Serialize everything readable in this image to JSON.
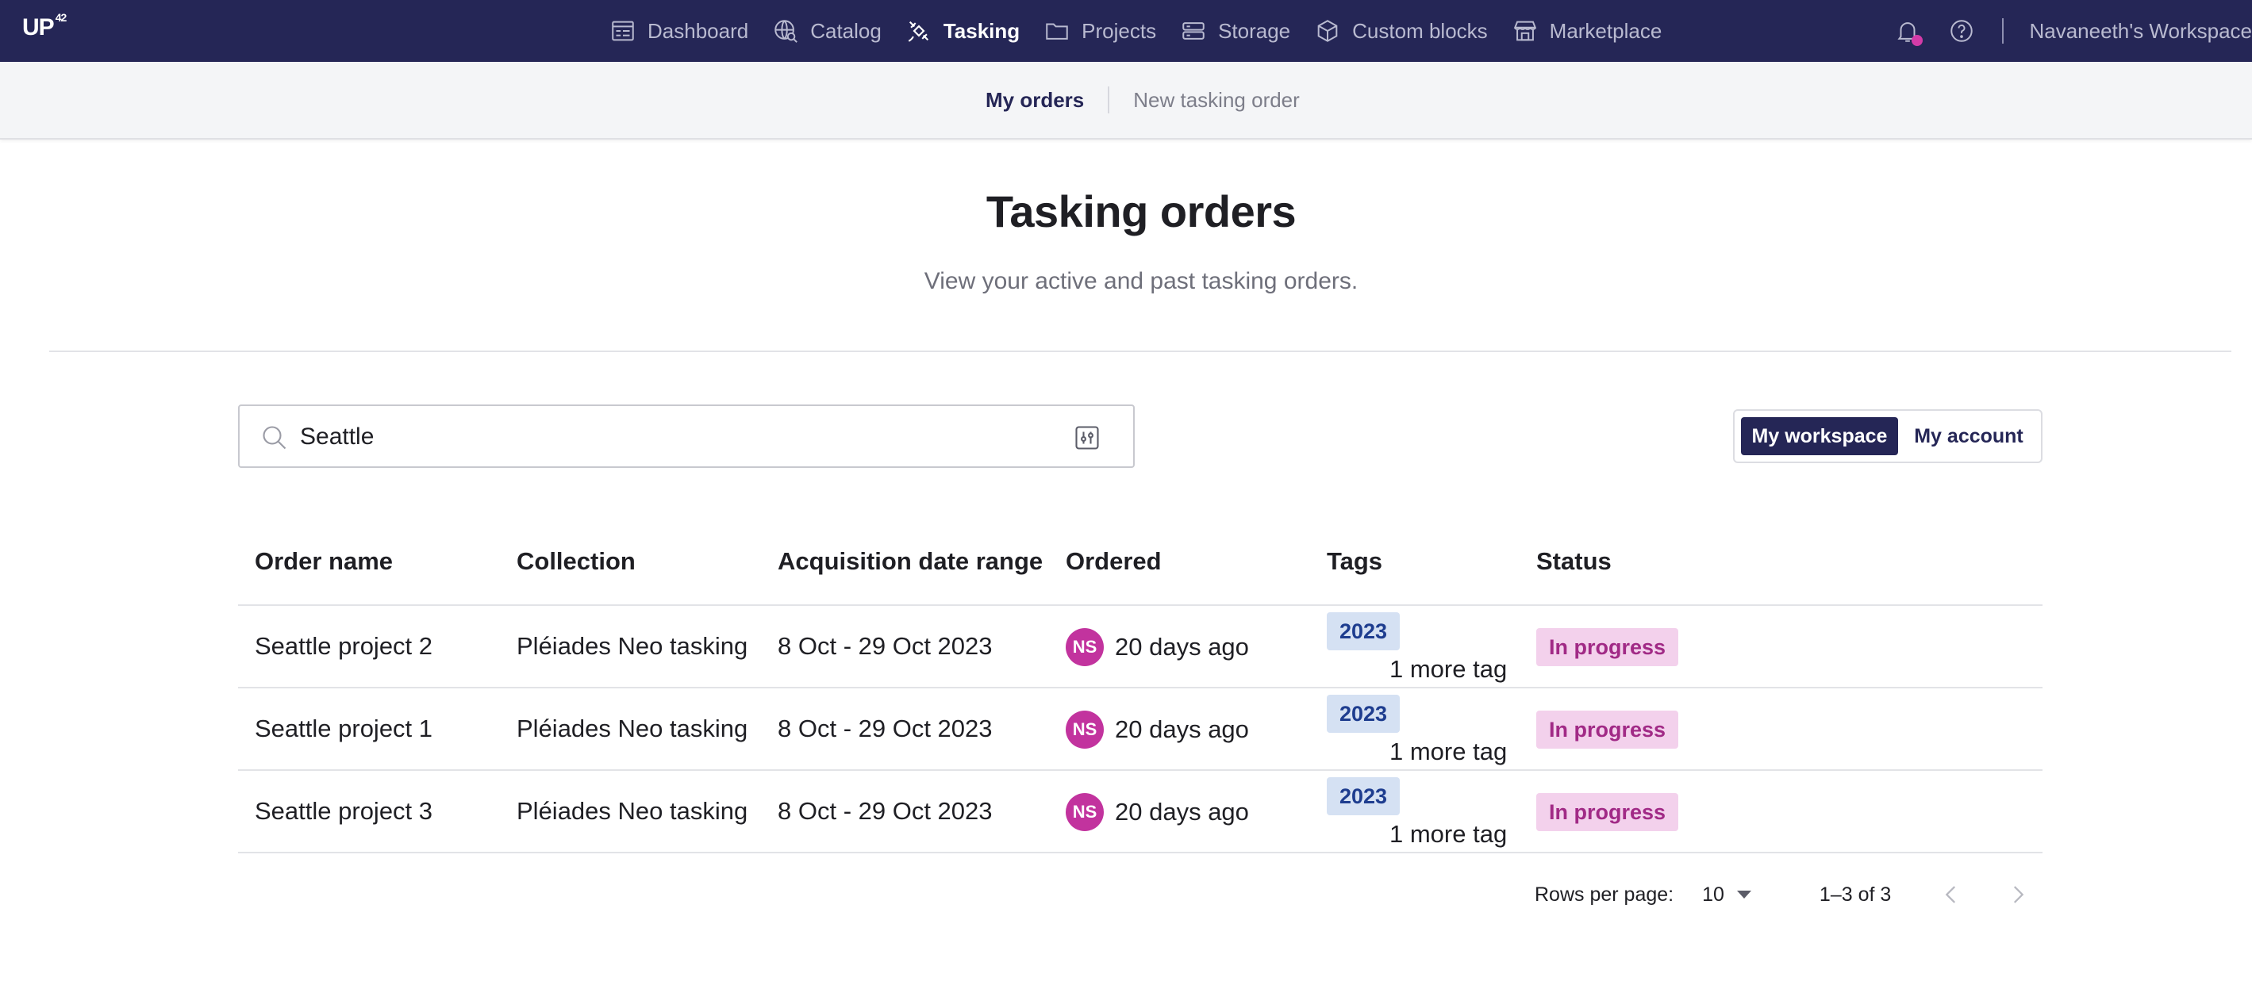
{
  "nav": {
    "logo": "UP",
    "logo_sup": "42",
    "items": [
      {
        "label": "Dashboard",
        "icon": "dashboard-icon"
      },
      {
        "label": "Catalog",
        "icon": "catalog-globe-icon"
      },
      {
        "label": "Tasking",
        "icon": "satellite-icon",
        "active": true
      },
      {
        "label": "Projects",
        "icon": "folder-icon"
      },
      {
        "label": "Storage",
        "icon": "storage-icon"
      },
      {
        "label": "Custom blocks",
        "icon": "cube-icon"
      },
      {
        "label": "Marketplace",
        "icon": "storefront-icon"
      }
    ],
    "workspace": "Navaneeth's Workspace"
  },
  "subnav": {
    "my_orders": "My orders",
    "new_order": "New tasking order"
  },
  "header": {
    "title": "Tasking orders",
    "subtitle": "View your active and past tasking orders."
  },
  "search": {
    "value": "Seattle"
  },
  "scope_toggle": {
    "my_workspace": "My workspace",
    "my_account": "My account"
  },
  "table": {
    "columns": [
      "Order name",
      "Collection",
      "Acquisition date range",
      "Ordered",
      "Tags",
      "Status"
    ],
    "rows": [
      {
        "name": "Seattle project 2",
        "collection": "Pléiades Neo tasking",
        "date_range": "8 Oct - 29 Oct 2023",
        "avatar": "NS",
        "ordered": "20 days ago",
        "tag": "2023",
        "more_tags": "1 more tag",
        "status": "In progress"
      },
      {
        "name": "Seattle project 1",
        "collection": "Pléiades Neo tasking",
        "date_range": "8 Oct - 29 Oct 2023",
        "avatar": "NS",
        "ordered": "20 days ago",
        "tag": "2023",
        "more_tags": "1 more tag",
        "status": "In progress"
      },
      {
        "name": "Seattle project 3",
        "collection": "Pléiades Neo tasking",
        "date_range": "8 Oct - 29 Oct 2023",
        "avatar": "NS",
        "ordered": "20 days ago",
        "tag": "2023",
        "more_tags": "1 more tag",
        "status": "In progress"
      }
    ]
  },
  "pagination": {
    "rows_per_page_label": "Rows per page:",
    "rows_per_page": "10",
    "range": "1–3 of 3"
  },
  "colors": {
    "nav_bg": "#252656",
    "accent": "#252656",
    "avatar": "#c2339e",
    "tag_bg": "#d5e1f3",
    "status_bg": "#f3d1ec",
    "notification_dot": "#d43ba8"
  }
}
